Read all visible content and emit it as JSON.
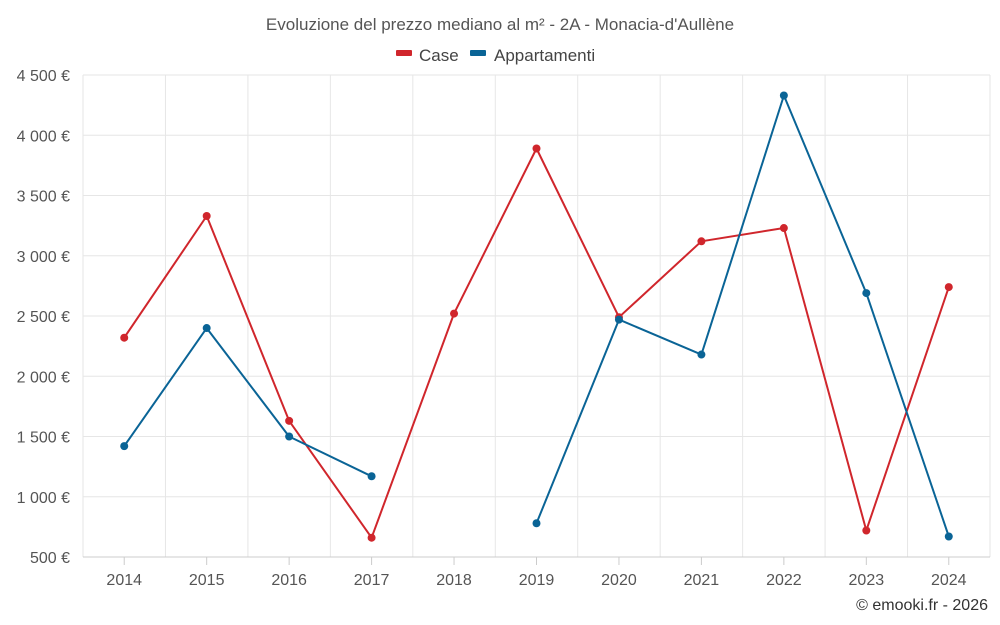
{
  "chart_data": {
    "type": "line",
    "title": "Evoluzione del prezzo mediano al m² - 2A - Monacia-d'Aullène",
    "categories": [
      "2014",
      "2015",
      "2016",
      "2017",
      "2018",
      "2019",
      "2020",
      "2021",
      "2022",
      "2023",
      "2024"
    ],
    "series": [
      {
        "name": "Case",
        "color": "#d0262c",
        "values": [
          2320,
          3330,
          1630,
          660,
          2520,
          3890,
          2490,
          3120,
          3230,
          720,
          2740
        ]
      },
      {
        "name": "Appartamenti",
        "color": "#0a6496",
        "values": [
          1420,
          2400,
          1500,
          1170,
          null,
          780,
          2470,
          2180,
          4330,
          2690,
          670
        ]
      }
    ],
    "ylim": [
      500,
      4500
    ],
    "yticks": [
      500,
      1000,
      1500,
      2000,
      2500,
      3000,
      3500,
      4000,
      4500
    ],
    "ytick_labels": [
      "500 €",
      "1 000 €",
      "1 500 €",
      "2 000 €",
      "2 500 €",
      "3 000 €",
      "3 500 €",
      "4 000 €",
      "4 500 €"
    ],
    "xlabel": "",
    "ylabel": "",
    "grid": true,
    "legend_position": "top-center",
    "credit": "© emooki.fr - 2026"
  }
}
